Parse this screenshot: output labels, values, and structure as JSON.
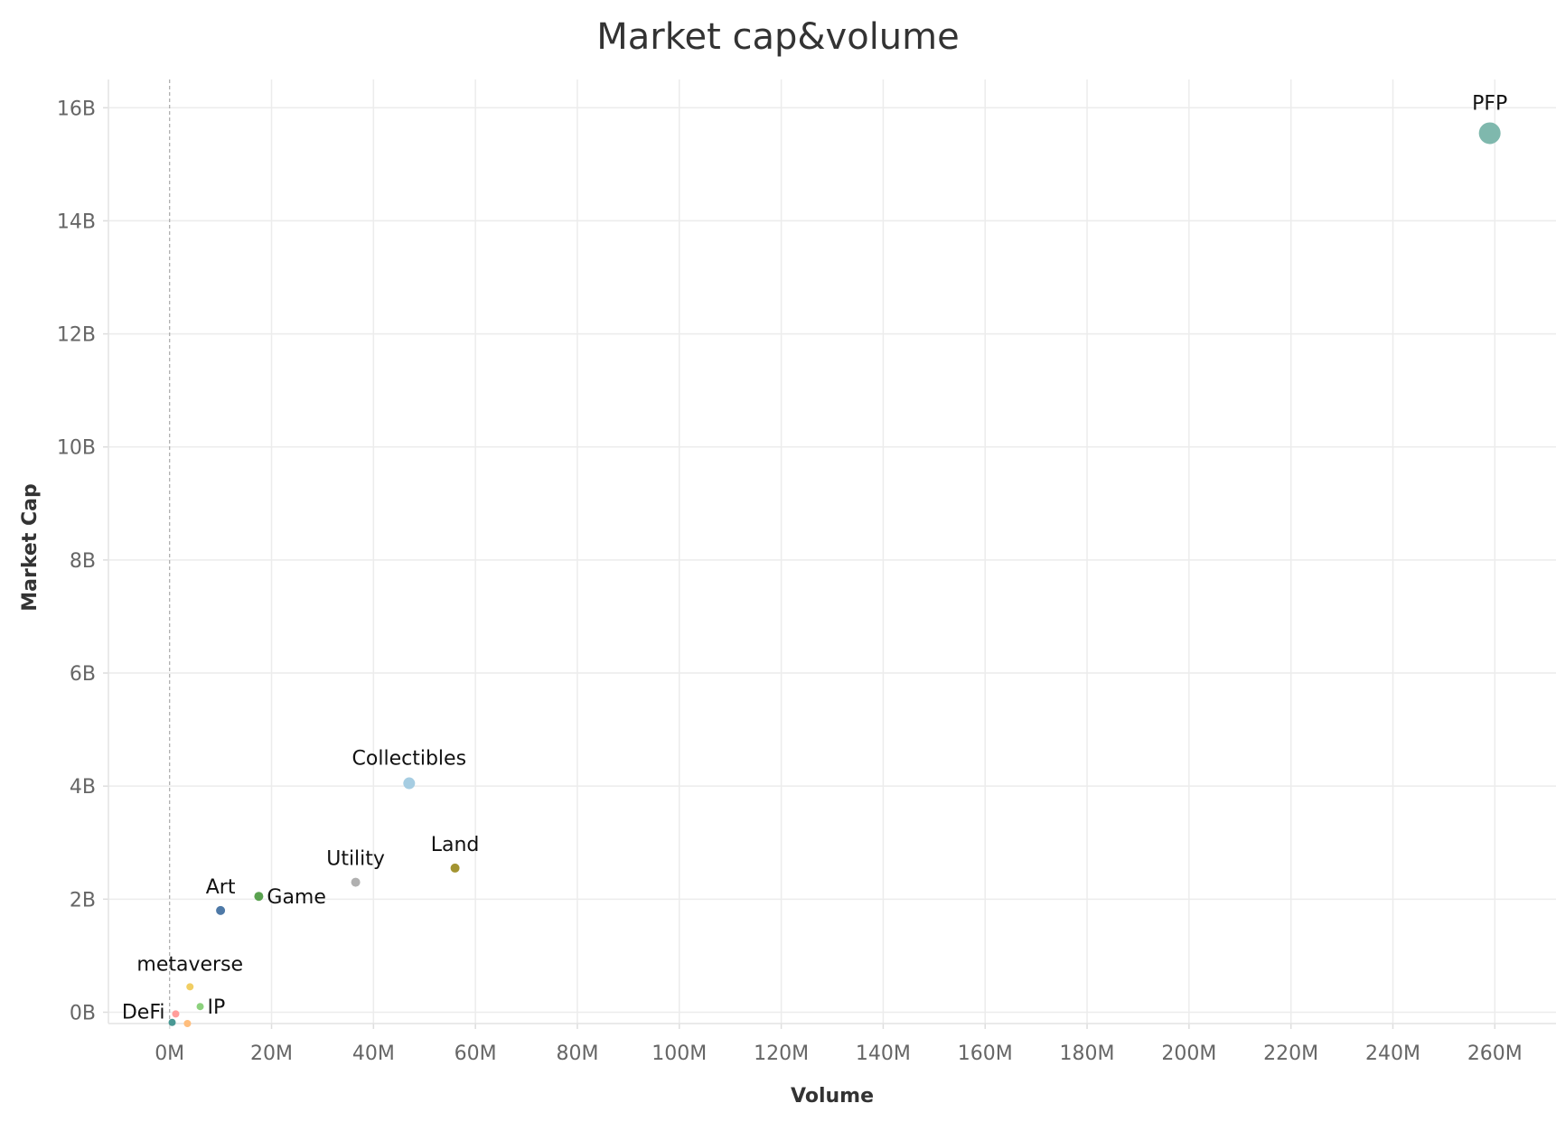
{
  "chart_data": {
    "type": "scatter",
    "title": "Market cap&volume",
    "xlabel": "Volume",
    "ylabel": "Market Cap",
    "xlim": [
      -12,
      272
    ],
    "ylim": [
      -0.2,
      16.5
    ],
    "x_unit": "M",
    "y_unit": "B",
    "x_ticks": [
      0,
      20,
      40,
      60,
      80,
      100,
      120,
      140,
      160,
      180,
      200,
      220,
      240,
      260
    ],
    "x_tick_labels": [
      "0M",
      "20M",
      "40M",
      "60M",
      "80M",
      "100M",
      "120M",
      "140M",
      "160M",
      "180M",
      "200M",
      "220M",
      "240M",
      "260M"
    ],
    "y_ticks": [
      0,
      2,
      4,
      6,
      8,
      10,
      12,
      14,
      16
    ],
    "y_tick_labels": [
      "0B",
      "2B",
      "4B",
      "6B",
      "8B",
      "10B",
      "12B",
      "14B",
      "16B"
    ],
    "zero_line": "dashed",
    "grid": true,
    "points": [
      {
        "name": "PFP",
        "x": 259,
        "y": 15.55,
        "color": "#7fb8ad",
        "size": "large",
        "label_pos": "above"
      },
      {
        "name": "Collectibles",
        "x": 47,
        "y": 4.05,
        "color": "#a6cde2",
        "size": "medium",
        "label_pos": "above"
      },
      {
        "name": "Land",
        "x": 56,
        "y": 2.55,
        "color": "#a39431",
        "size": "small",
        "label_pos": "above"
      },
      {
        "name": "Utility",
        "x": 36.5,
        "y": 2.3,
        "color": "#b0b0b0",
        "size": "small",
        "label_pos": "above"
      },
      {
        "name": "Game",
        "x": 17.5,
        "y": 2.05,
        "color": "#59a14f",
        "size": "small",
        "label_pos": "right"
      },
      {
        "name": "Art",
        "x": 10,
        "y": 1.8,
        "color": "#4e79a7",
        "size": "small",
        "label_pos": "above"
      },
      {
        "name": "metaverse",
        "x": 4,
        "y": 0.45,
        "color": "#f1ce63",
        "size": "tiny",
        "label_pos": "above"
      },
      {
        "name": "IP",
        "x": 6,
        "y": 0.1,
        "color": "#8cd17d",
        "size": "tiny",
        "label_pos": "right"
      },
      {
        "name": "",
        "x": 1.2,
        "y": -0.03,
        "color": "#ff9d9a",
        "size": "tiny",
        "label_pos": "none"
      },
      {
        "name": "DeFi",
        "x": 0.5,
        "y": -0.18,
        "color": "#499894",
        "size": "tiny",
        "label_pos": "left"
      },
      {
        "name": "",
        "x": 3.5,
        "y": -0.2,
        "color": "#ffbe7d",
        "size": "tiny",
        "label_pos": "none"
      }
    ]
  }
}
